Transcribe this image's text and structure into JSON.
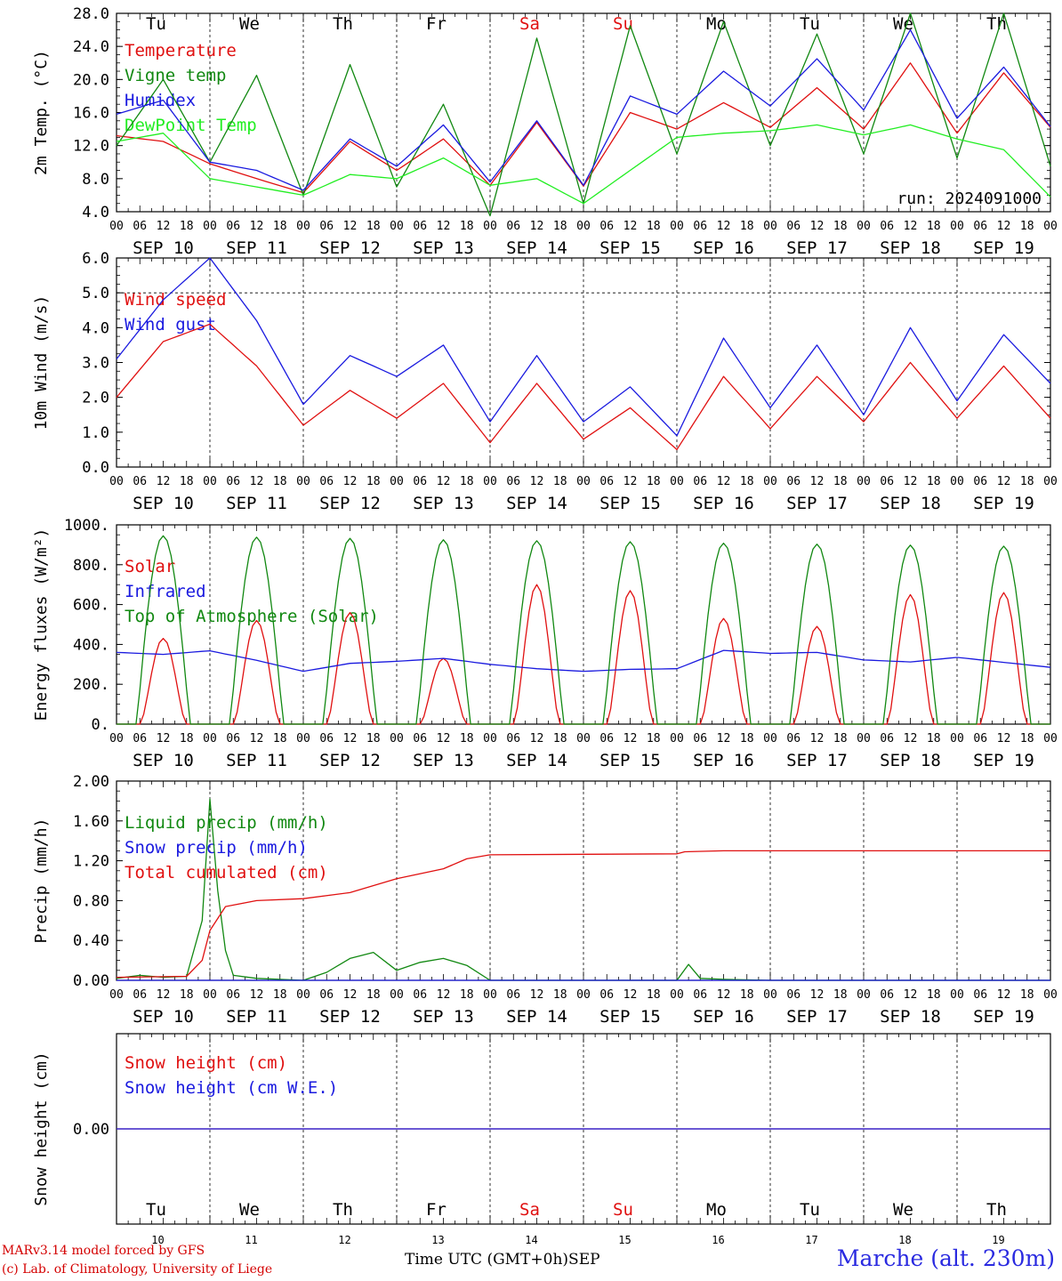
{
  "chart_data": [
    {
      "type": "line",
      "ylabel": "2m Temp. (°C)",
      "ylim": [
        4.0,
        28.0
      ],
      "yticks": [
        "4.0",
        "8.0",
        "12.0",
        "16.0",
        "20.0",
        "24.0",
        "28.0"
      ],
      "annotation": "run: 2024091000",
      "grid": "dashed day separators",
      "legend_position": "top-left",
      "x_hours": [
        0,
        12,
        24,
        36,
        48,
        60,
        72,
        84,
        96,
        108,
        120,
        132,
        144,
        156,
        168,
        180,
        192,
        204,
        216,
        228,
        240
      ],
      "series": [
        {
          "name": "Temperature",
          "color": "#e01010",
          "values": [
            13.2,
            12.5,
            9.8,
            8.0,
            6.3,
            12.5,
            9.0,
            12.8,
            7.2,
            14.8,
            7.1,
            16.0,
            14.0,
            17.2,
            14.2,
            19.0,
            14.0,
            22.0,
            13.5,
            20.8,
            14.2
          ]
        },
        {
          "name": "Vigne temp",
          "color": "#118811",
          "values": [
            12.0,
            20.0,
            10.0,
            20.5,
            6.0,
            21.8,
            7.0,
            17.0,
            3.5,
            25.0,
            5.0,
            26.5,
            11.0,
            27.0,
            12.0,
            25.5,
            11.0,
            28.0,
            10.5,
            28.0,
            9.5
          ]
        },
        {
          "name": "Humidex",
          "color": "#1a1adf",
          "values": [
            15.8,
            17.5,
            10.0,
            9.0,
            6.6,
            12.8,
            9.5,
            14.5,
            7.6,
            15.0,
            7.2,
            18.0,
            15.8,
            21.0,
            16.8,
            22.5,
            16.3,
            26.0,
            15.3,
            21.5,
            14.3
          ]
        },
        {
          "name": "DewPoint Temp",
          "color": "#22ee22",
          "values": [
            12.5,
            13.5,
            8.0,
            7.0,
            6.0,
            8.5,
            8.0,
            10.5,
            7.2,
            8.0,
            5.0,
            9.0,
            13.0,
            13.5,
            13.8,
            14.5,
            13.3,
            14.5,
            12.8,
            11.5,
            5.8
          ]
        }
      ]
    },
    {
      "type": "line",
      "ylabel": "10m Wind (m/s)",
      "ylim": [
        0.0,
        6.0
      ],
      "yticks": [
        "0.0",
        "1.0",
        "2.0",
        "3.0",
        "4.0",
        "5.0",
        "6.0"
      ],
      "reference_line": 5.0,
      "legend_position": "top-left",
      "x_hours": [
        0,
        12,
        24,
        36,
        48,
        60,
        72,
        84,
        96,
        108,
        120,
        132,
        144,
        156,
        168,
        180,
        192,
        204,
        216,
        228,
        240
      ],
      "series": [
        {
          "name": "Wind speed",
          "color": "#e01010",
          "values": [
            2.0,
            3.6,
            4.1,
            2.9,
            1.2,
            2.2,
            1.4,
            2.4,
            0.7,
            2.4,
            0.8,
            1.7,
            0.5,
            2.6,
            1.1,
            2.6,
            1.3,
            3.0,
            1.4,
            2.9,
            1.4
          ]
        },
        {
          "name": "Wind gust",
          "color": "#1a1adf",
          "values": [
            3.1,
            4.8,
            6.0,
            4.2,
            1.8,
            3.2,
            2.6,
            3.5,
            1.3,
            3.2,
            1.3,
            2.3,
            0.9,
            3.7,
            1.7,
            3.5,
            1.5,
            4.0,
            1.9,
            3.8,
            2.4
          ]
        }
      ]
    },
    {
      "type": "line",
      "ylabel": "Energy fluxes (W/m²)",
      "ylim": [
        0,
        1000
      ],
      "yticks": [
        "0.",
        "200.",
        "400.",
        "600.",
        "800.",
        "1000."
      ],
      "legend_position": "top-left",
      "days": 10,
      "series": [
        {
          "name": "Solar",
          "color": "#e01010",
          "daily_peak": [
            430,
            520,
            560,
            330,
            700,
            670,
            530,
            490,
            650,
            660
          ]
        },
        {
          "name": "Infrared",
          "color": "#1a1adf",
          "x_hours": [
            0,
            12,
            24,
            36,
            48,
            60,
            72,
            84,
            96,
            108,
            120,
            132,
            144,
            156,
            168,
            180,
            192,
            204,
            216,
            228,
            240
          ],
          "values": [
            360,
            350,
            368,
            320,
            265,
            305,
            315,
            330,
            300,
            278,
            265,
            275,
            278,
            370,
            355,
            360,
            322,
            312,
            335,
            310,
            285
          ]
        },
        {
          "name": "Top of Atmosphere (Solar)",
          "color": "#118811",
          "daily_peak": [
            945,
            938,
            932,
            925,
            920,
            915,
            908,
            903,
            898,
            893
          ]
        }
      ]
    },
    {
      "type": "line",
      "ylabel": "Precip (mm/h)",
      "ylim": [
        0.0,
        2.0
      ],
      "yticks": [
        "0.00",
        "0.40",
        "0.80",
        "1.20",
        "1.60",
        "2.00"
      ],
      "legend_position": "top-left",
      "series": [
        {
          "name": "Liquid precip (mm/h)",
          "color": "#118811",
          "x_hours": [
            0,
            6,
            12,
            18,
            22,
            24,
            26,
            28,
            30,
            36,
            48,
            54,
            60,
            66,
            72,
            78,
            84,
            90,
            96,
            144,
            147,
            150,
            156,
            168,
            240
          ],
          "values": [
            0.02,
            0.05,
            0.03,
            0.04,
            0.6,
            1.82,
            0.9,
            0.3,
            0.05,
            0.02,
            0.0,
            0.08,
            0.22,
            0.28,
            0.1,
            0.18,
            0.22,
            0.15,
            0.0,
            0.0,
            0.16,
            0.02,
            0.01,
            0.0,
            0.0
          ]
        },
        {
          "name": "Snow precip (mm/h)",
          "color": "#1a1adf",
          "x_hours": [
            0,
            240
          ],
          "values": [
            0.0,
            0.0
          ]
        },
        {
          "name": "Total cumulated (cm)",
          "color": "#e01010",
          "x_hours": [
            0,
            18,
            22,
            24,
            28,
            36,
            48,
            60,
            72,
            84,
            90,
            96,
            144,
            146,
            156,
            240
          ],
          "values": [
            0.03,
            0.04,
            0.2,
            0.5,
            0.74,
            0.8,
            0.82,
            0.88,
            1.02,
            1.12,
            1.22,
            1.26,
            1.27,
            1.29,
            1.3,
            1.3
          ]
        }
      ]
    },
    {
      "type": "line",
      "ylabel": "Snow height (cm)",
      "ylim": [
        -1.0,
        1.0
      ],
      "yticks": [
        "0.00"
      ],
      "legend_position": "top-left",
      "x_hours": [
        0,
        240
      ],
      "series": [
        {
          "name": "Snow height (cm)",
          "color": "#e01010",
          "values": [
            0.0,
            0.0
          ]
        },
        {
          "name": "Snow height (cm W.E.)",
          "color": "#1a1adf",
          "values": [
            0.0,
            0.0
          ]
        }
      ]
    }
  ],
  "days": {
    "weekdays": [
      "Tu",
      "We",
      "Th",
      "Fr",
      "Sa",
      "Su",
      "Mo",
      "Tu",
      "We",
      "Th"
    ],
    "weekend_color": "#e01010",
    "weekday_color": "#000000",
    "weekend_flags": [
      false,
      false,
      false,
      false,
      true,
      true,
      false,
      false,
      false,
      false
    ],
    "dates": [
      "SEP 10",
      "SEP 11",
      "SEP 12",
      "SEP 13",
      "SEP 14",
      "SEP 15",
      "SEP 16",
      "SEP 17",
      "SEP 18",
      "SEP 19"
    ],
    "day_numbers": [
      "10",
      "11",
      "12",
      "13",
      "14",
      "15",
      "16",
      "17",
      "18",
      "19"
    ],
    "hour_labels": [
      "00",
      "06",
      "12",
      "18"
    ],
    "final_hour_label": "00"
  },
  "footer": {
    "model": "MARv3.14 model forced by GFS",
    "credit": "(c) Lab. of Climatology, University of Liege",
    "xlabel": "Time UTC (GMT+0h)",
    "month": "SEP",
    "station": "Marche (alt. 230m)"
  }
}
